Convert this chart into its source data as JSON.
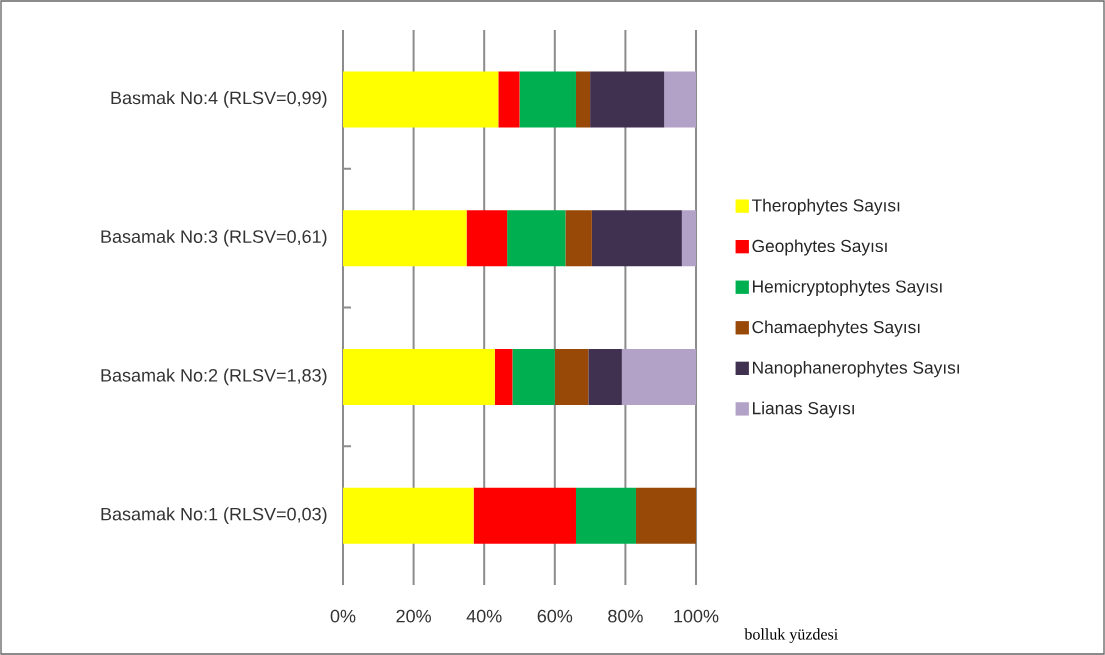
{
  "chart_data": {
    "type": "bar",
    "orientation": "horizontal",
    "stacked": true,
    "categories": [
      "Basmak No:4 (RLSV=0,99)",
      "Basamak No:3 (RLSV=0,61)",
      "Basamak No:2 (RLSV=1,83)",
      "Basamak No:1 (RLSV=0,03)"
    ],
    "series": [
      {
        "name": "Therophytes Sayısı",
        "color": "#ffff00",
        "values": [
          44,
          35,
          43,
          37
        ]
      },
      {
        "name": "Geophytes Sayısı",
        "color": "#ff0000",
        "values": [
          6,
          11.5,
          5,
          29
        ]
      },
      {
        "name": "Hemicryptophytes Sayısı",
        "color": "#00b050",
        "values": [
          16,
          16.5,
          12,
          17
        ]
      },
      {
        "name": "Chamaephytes Sayısı",
        "color": "#984807",
        "values": [
          4,
          7.5,
          9.5,
          17
        ]
      },
      {
        "name": "Nanophanerophytes Sayısı",
        "color": "#403151",
        "values": [
          21,
          25.5,
          9.5,
          0
        ]
      },
      {
        "name": "Lianas Sayısı",
        "color": "#b3a2c7",
        "values": [
          9,
          4,
          21,
          0
        ]
      }
    ],
    "xlim": [
      0,
      100
    ],
    "xticks": [
      {
        "value": 0,
        "label": "0%"
      },
      {
        "value": 20,
        "label": "20%"
      },
      {
        "value": 40,
        "label": "40%"
      },
      {
        "value": 60,
        "label": "60%"
      },
      {
        "value": 80,
        "label": "80%"
      },
      {
        "value": 100,
        "label": "100%"
      }
    ],
    "xlabel": "bolluk yüzdesi",
    "grid": "x",
    "legend": "right"
  }
}
